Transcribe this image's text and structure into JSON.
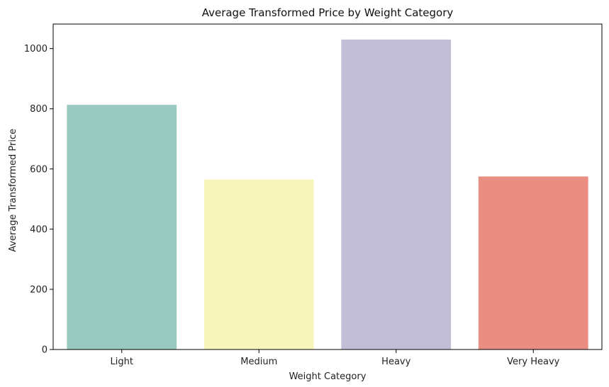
{
  "chart_data": {
    "type": "bar",
    "title": "Average Transformed Price by Weight Category",
    "xlabel": "Weight Category",
    "ylabel": "Average Transformed Price",
    "categories": [
      "Light",
      "Medium",
      "Heavy",
      "Very Heavy"
    ],
    "values": [
      813,
      565,
      1030,
      575
    ],
    "colors": [
      "#99c9c0",
      "#f6f6bc",
      "#c1bed6",
      "#ea8d83"
    ],
    "ylim": [
      0,
      1081.5
    ],
    "yticks": [
      0,
      200,
      400,
      600,
      800,
      1000
    ],
    "grid": false,
    "legend": "none"
  }
}
